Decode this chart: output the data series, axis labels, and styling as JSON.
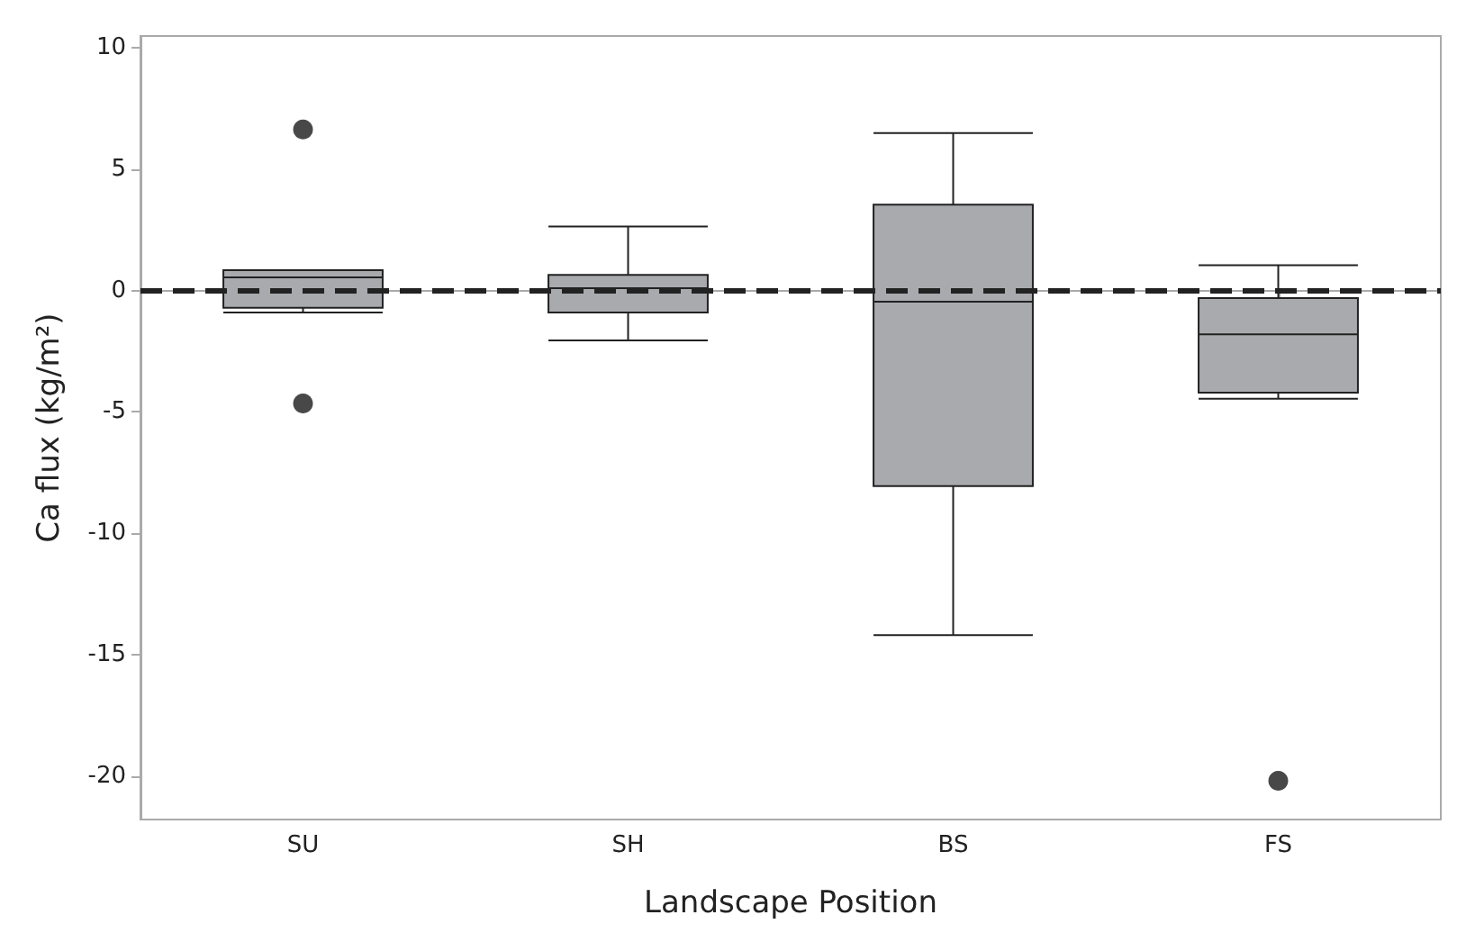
{
  "chart_data": {
    "type": "box",
    "xlabel": "Landscape Position",
    "ylabel": "Ca flux (kg/m²)",
    "categories": [
      "SU",
      "SH",
      "BS",
      "FS"
    ],
    "boxes": [
      {
        "low": -0.9,
        "q1": -0.7,
        "median": 0.55,
        "q3": 0.85,
        "high": 0.85,
        "outliers": [
          6.65,
          -4.65
        ]
      },
      {
        "low": -2.05,
        "q1": -0.9,
        "median": 0.1,
        "q3": 0.65,
        "high": 2.65
      },
      {
        "low": -14.2,
        "q1": -8.05,
        "median": -0.45,
        "q3": 3.55,
        "high": 6.5
      },
      {
        "low": -4.45,
        "q1": -4.2,
        "median": -1.8,
        "q3": -0.3,
        "high": 1.05,
        "outliers": [
          -20.2
        ]
      }
    ],
    "color": "#a9aaae",
    "ylim": [
      -21.8,
      10.5
    ],
    "yticks": [
      -20,
      -15,
      -10,
      -5,
      0,
      5,
      10
    ],
    "ref_lines": [
      {
        "axis": "y",
        "value": 0,
        "label": null,
        "color": "#222222",
        "line_style": "dashed"
      }
    ],
    "grid": false
  }
}
